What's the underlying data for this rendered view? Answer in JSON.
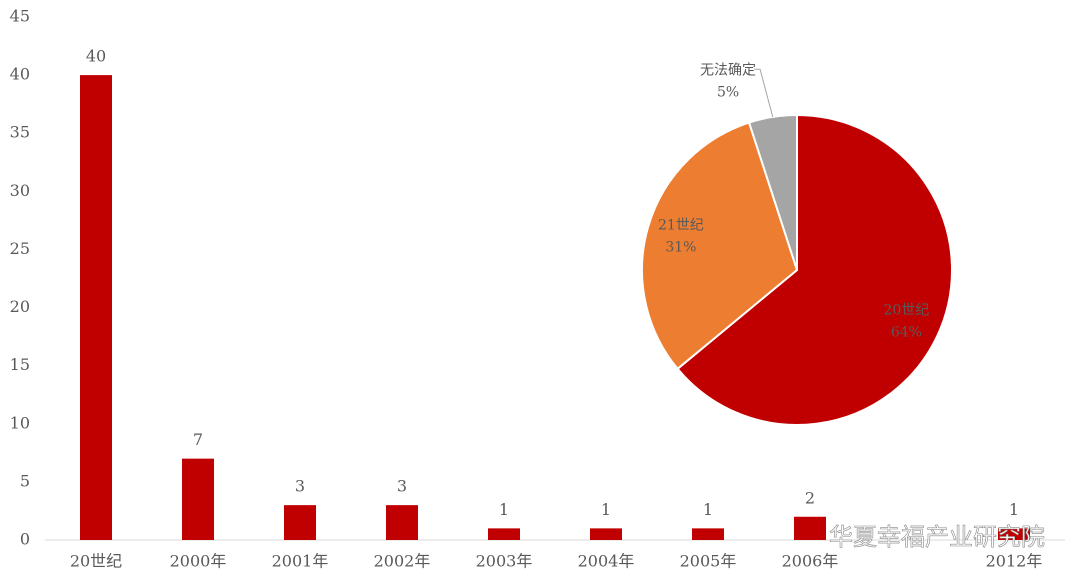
{
  "chart_data": [
    {
      "type": "bar",
      "categories": [
        "20世纪",
        "2000年",
        "2001年",
        "2002年",
        "2003年",
        "2004年",
        "2005年",
        "2006年",
        null,
        "2012年"
      ],
      "values": [
        40,
        7,
        3,
        3,
        1,
        1,
        1,
        2,
        null,
        1
      ],
      "color": "#c00000",
      "ylim": [
        0,
        45
      ],
      "yticks": [
        0,
        5,
        10,
        15,
        20,
        25,
        30,
        35,
        40,
        45
      ]
    },
    {
      "type": "pie",
      "categories": [
        "20世纪",
        "21世纪",
        "无法确定"
      ],
      "values": [
        64,
        31,
        5
      ],
      "value_labels": [
        "64%",
        "31%",
        "5%"
      ],
      "colors": [
        "#c00000",
        "#ed7d31",
        "#a5a5a5"
      ]
    }
  ],
  "watermark": "华夏幸福产业研究院"
}
